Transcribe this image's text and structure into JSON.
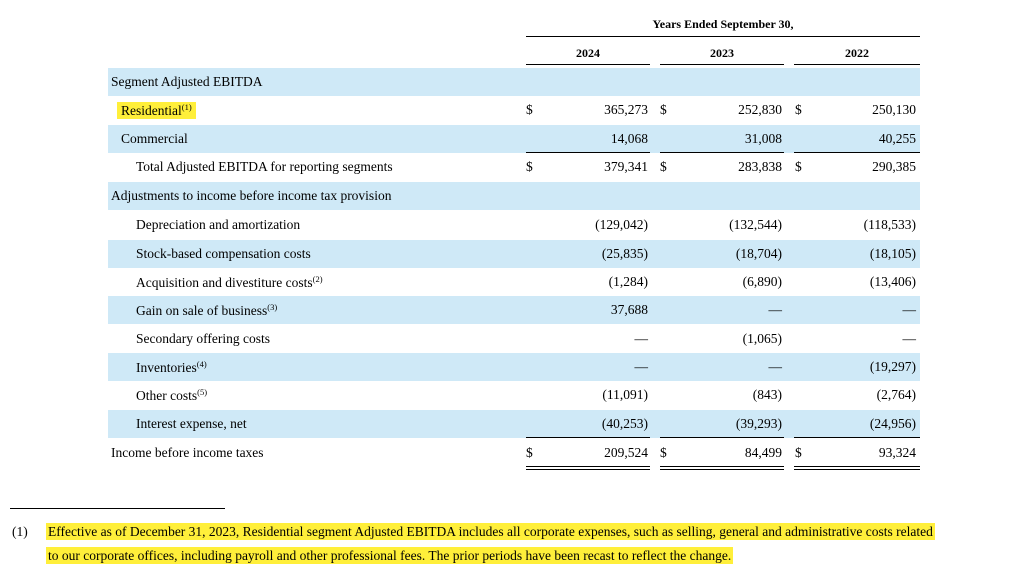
{
  "header": {
    "years_label": "Years Ended September 30,",
    "years": [
      "2024",
      "2023",
      "2022"
    ]
  },
  "rows": [
    {
      "label": "Segment Adjusted EBITDA",
      "sup": "",
      "values": [
        "",
        "",
        ""
      ],
      "dollar": false
    },
    {
      "label": "Residential",
      "sup": "(1)",
      "values": [
        "365,273",
        "252,830",
        "250,130"
      ],
      "dollar": true
    },
    {
      "label": "Commercial",
      "sup": "",
      "values": [
        "14,068",
        "31,008",
        "40,255"
      ],
      "dollar": false
    },
    {
      "label": "Total Adjusted EBITDA for reporting segments",
      "sup": "",
      "values": [
        "379,341",
        "283,838",
        "290,385"
      ],
      "dollar": true
    },
    {
      "label": "Adjustments to income before income tax provision",
      "sup": "",
      "values": [
        "",
        "",
        ""
      ],
      "dollar": false
    },
    {
      "label": "Depreciation and amortization",
      "sup": "",
      "values": [
        "(129,042)",
        "(132,544)",
        "(118,533)"
      ],
      "dollar": false
    },
    {
      "label": "Stock-based compensation costs",
      "sup": "",
      "values": [
        "(25,835)",
        "(18,704)",
        "(18,105)"
      ],
      "dollar": false
    },
    {
      "label": "Acquisition and divestiture costs",
      "sup": "(2)",
      "values": [
        "(1,284)",
        "(6,890)",
        "(13,406)"
      ],
      "dollar": false
    },
    {
      "label": "Gain on sale of business",
      "sup": "(3)",
      "values": [
        "37,688",
        "—",
        "—"
      ],
      "dollar": false
    },
    {
      "label": "Secondary offering costs",
      "sup": "",
      "values": [
        "—",
        "(1,065)",
        "—"
      ],
      "dollar": false
    },
    {
      "label": "Inventories",
      "sup": "(4)",
      "values": [
        "—",
        "—",
        "(19,297)"
      ],
      "dollar": false
    },
    {
      "label": "Other costs",
      "sup": "(5)",
      "values": [
        "(11,091)",
        "(843)",
        "(2,764)"
      ],
      "dollar": false
    },
    {
      "label": "Interest expense, net",
      "sup": "",
      "values": [
        "(40,253)",
        "(39,293)",
        "(24,956)"
      ],
      "dollar": false
    },
    {
      "label": "Income before income taxes",
      "sup": "",
      "values": [
        "209,524",
        "84,499",
        "93,324"
      ],
      "dollar": true
    }
  ],
  "currency_symbol": "$",
  "footnote": {
    "number": "(1)",
    "line1": "Effective as of December 31, 2023, Residential segment Adjusted EBITDA includes all corporate expenses, such as selling, general and administrative costs related",
    "line2": "to our corporate offices, including payroll and other professional fees. The prior periods have been recast to reflect the change."
  },
  "colors": {
    "row_shade": "#cfe9f7",
    "highlight": "#ffef3a"
  }
}
